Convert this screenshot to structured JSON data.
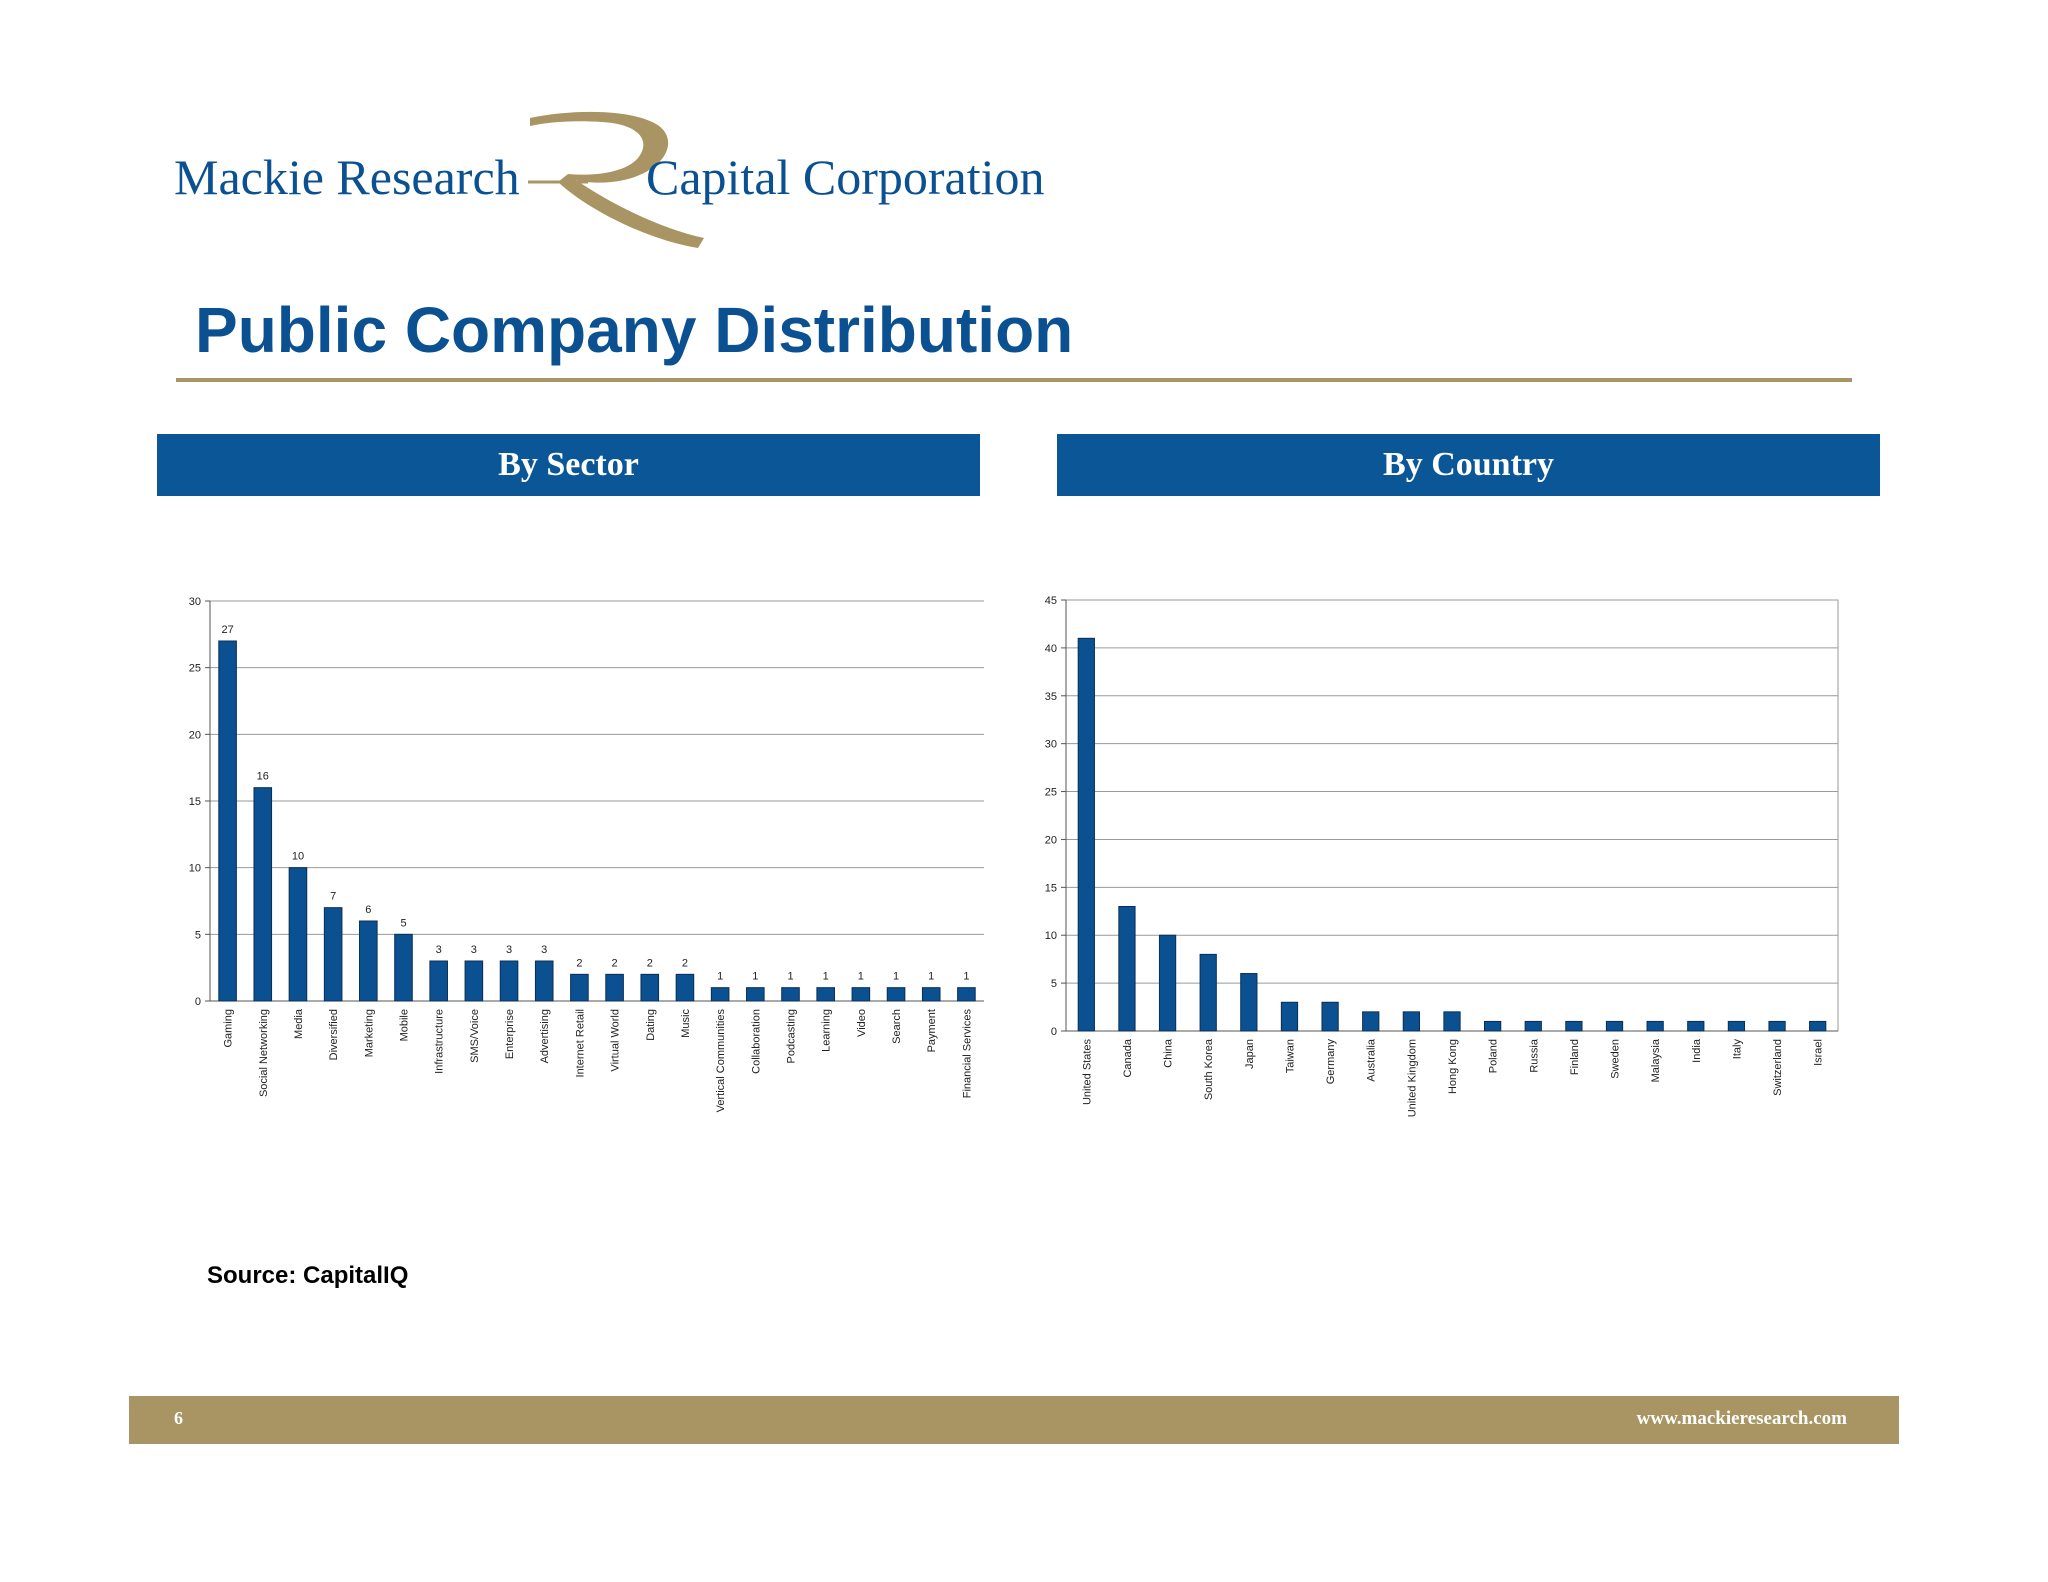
{
  "logo": {
    "left_text": "Mackie Research",
    "right_text": "Capital Corporation"
  },
  "page": {
    "title": "Public Company Distribution",
    "source": "Source: CapitalIQ"
  },
  "panels": {
    "sector_label": "By Sector",
    "country_label": "By Country"
  },
  "footer": {
    "page_number": "6",
    "url": "www.mackieresearch.com"
  },
  "colors": {
    "brand_blue": "#0b5191",
    "header_blue": "#0b5697",
    "gold": "#a89563",
    "bar": "#0b5191"
  },
  "chart_data": [
    {
      "type": "bar",
      "title": "By Sector",
      "xlabel": "",
      "ylabel": "",
      "ylim": [
        0,
        30
      ],
      "yticks": [
        0,
        5,
        10,
        15,
        20,
        25,
        30
      ],
      "show_data_labels": true,
      "categories": [
        "Gaming",
        "Social Networking",
        "Media",
        "Diversified",
        "Marketing",
        "Mobile",
        "Infrastructure",
        "SMS/Voice",
        "Enterprise",
        "Advertising",
        "Internet Retail",
        "Virtual World",
        "Dating",
        "Music",
        "Vertical Communities",
        "Collaboration",
        "Podcasting",
        "Learning",
        "Video",
        "Search",
        "Payment",
        "Financial Services"
      ],
      "values": [
        27,
        16,
        10,
        7,
        6,
        5,
        3,
        3,
        3,
        3,
        2,
        2,
        2,
        2,
        1,
        1,
        1,
        1,
        1,
        1,
        1,
        1
      ]
    },
    {
      "type": "bar",
      "title": "By Country",
      "xlabel": "",
      "ylabel": "",
      "ylim": [
        0,
        45
      ],
      "yticks": [
        0,
        5,
        10,
        15,
        20,
        25,
        30,
        35,
        40,
        45
      ],
      "show_data_labels": false,
      "categories": [
        "United States",
        "Canada",
        "China",
        "South Korea",
        "Japan",
        "Taiwan",
        "Germany",
        "Australia",
        "United Kingdom",
        "Hong Kong",
        "Poland",
        "Russia",
        "Finland",
        "Sweden",
        "Malaysia",
        "India",
        "Italy",
        "Switzerland",
        "Israel"
      ],
      "values": [
        41,
        13,
        10,
        8,
        6,
        3,
        3,
        2,
        2,
        2,
        1,
        1,
        1,
        1,
        1,
        1,
        1,
        1,
        1
      ]
    }
  ]
}
